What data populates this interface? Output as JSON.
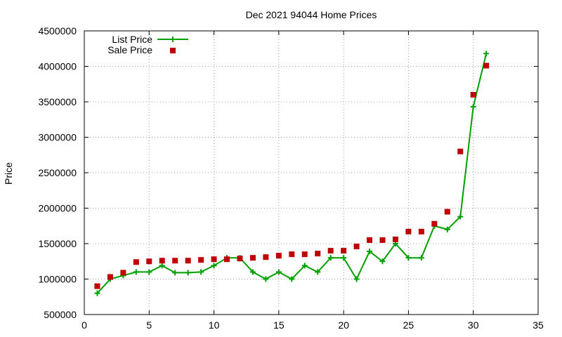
{
  "chart_data": {
    "type": "line",
    "title": "Dec 2021 94044 Home Prices",
    "xlabel": "",
    "ylabel": "Price",
    "xlim": [
      0,
      35
    ],
    "ylim": [
      500000,
      4500000
    ],
    "xticks": [
      0,
      5,
      10,
      15,
      20,
      25,
      30,
      35
    ],
    "yticks": [
      500000,
      1000000,
      1500000,
      2000000,
      2500000,
      3000000,
      3500000,
      4000000,
      4500000
    ],
    "grid": true,
    "legend_position": "top-left",
    "series": [
      {
        "name": "List Price",
        "style": "line-with-plus-markers",
        "color": "#00a000",
        "x": [
          1,
          2,
          3,
          4,
          5,
          6,
          7,
          8,
          9,
          10,
          11,
          12,
          13,
          14,
          15,
          16,
          17,
          18,
          19,
          20,
          21,
          22,
          23,
          24,
          25,
          26,
          27,
          28,
          29,
          30,
          31
        ],
        "values": [
          800000,
          1000000,
          1050000,
          1100000,
          1100000,
          1190000,
          1090000,
          1090000,
          1100000,
          1190000,
          1300000,
          1300000,
          1100000,
          1000000,
          1100000,
          1000000,
          1190000,
          1100000,
          1300000,
          1300000,
          1000000,
          1390000,
          1250000,
          1500000,
          1300000,
          1300000,
          1750000,
          1700000,
          1880000,
          3430000,
          4180000
        ]
      },
      {
        "name": "Sale Price",
        "style": "square-markers",
        "color": "#c00000",
        "x": [
          1,
          2,
          3,
          4,
          5,
          6,
          7,
          8,
          9,
          10,
          11,
          12,
          13,
          14,
          15,
          16,
          17,
          18,
          19,
          20,
          21,
          22,
          23,
          24,
          25,
          26,
          27,
          28,
          29,
          30,
          31
        ],
        "values": [
          900000,
          1030000,
          1090000,
          1240000,
          1250000,
          1260000,
          1260000,
          1260000,
          1270000,
          1280000,
          1280000,
          1290000,
          1300000,
          1310000,
          1330000,
          1350000,
          1350000,
          1360000,
          1400000,
          1400000,
          1460000,
          1550000,
          1550000,
          1560000,
          1670000,
          1670000,
          1780000,
          1950000,
          2800000,
          3600000,
          4010000
        ]
      }
    ]
  }
}
